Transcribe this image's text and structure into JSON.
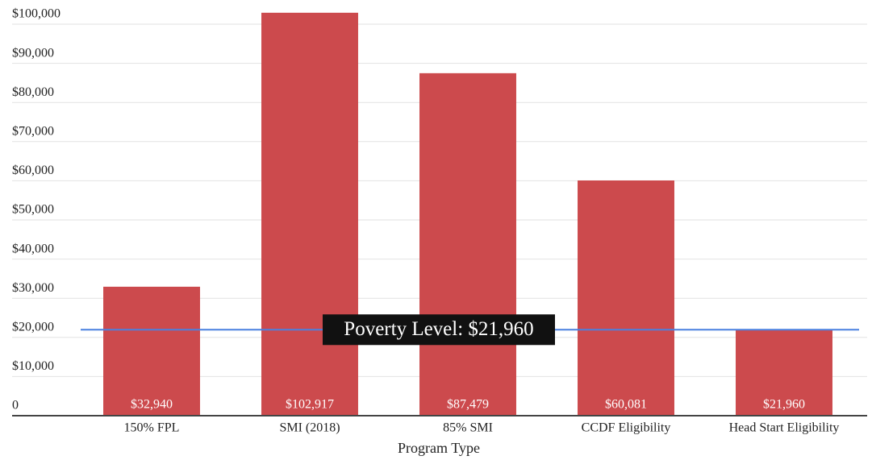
{
  "chart_data": {
    "type": "bar",
    "x_label": "Program Type",
    "categories": [
      "150% FPL",
      "SMI (2018)",
      "85% SMI",
      "CCDF Eligibility",
      "Head Start Eligibility"
    ],
    "values": [
      32940,
      102917,
      87479,
      60081,
      21960
    ],
    "value_labels": [
      "$32,940",
      "$102,917",
      "$87,479",
      "$60,081",
      "$21,960"
    ],
    "color": "#cc4a4d",
    "ylim": [
      0,
      100000
    ],
    "yticks": [
      0,
      {
        "value": 10000,
        "label": "$10,000"
      },
      {
        "value": 20000,
        "label": "$20,000"
      },
      {
        "value": 30000,
        "label": "$30,000"
      },
      {
        "value": 40000,
        "label": "$40,000"
      },
      {
        "value": 50000,
        "label": "$50,000"
      },
      {
        "value": 60000,
        "label": "$60,000"
      },
      {
        "value": 70000,
        "label": "$70,000"
      },
      {
        "value": 80000,
        "label": "$80,000"
      },
      {
        "value": 90000,
        "label": "$90,000"
      },
      {
        "value": 100000,
        "label": "$100,000"
      }
    ],
    "grid": true,
    "reference_line": {
      "value": 21960,
      "label": "Poverty Level: $21,960",
      "color": "#4a80e0"
    }
  }
}
